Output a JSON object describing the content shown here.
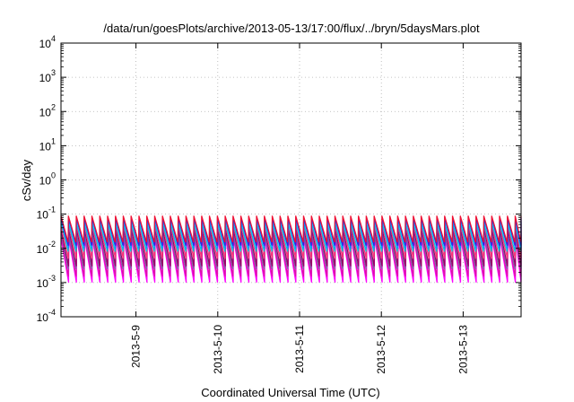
{
  "chart_data": {
    "type": "line",
    "title": "/data/run/goesPlots/archive/2013-05-13/17:00/flux/../bryn/5daysMars.plot",
    "xlabel": "Coordinated Universal Time (UTC)",
    "ylabel": "cSv/day",
    "y_scale": "log",
    "ylim": [
      0.0001,
      10000
    ],
    "xlim": [
      "2013-05-08T02:00",
      "2013-05-13T17:00"
    ],
    "y_ticks": [
      {
        "base": "10",
        "exp": "-4",
        "value": 0.0001
      },
      {
        "base": "10",
        "exp": "-3",
        "value": 0.001
      },
      {
        "base": "10",
        "exp": "-2",
        "value": 0.01
      },
      {
        "base": "10",
        "exp": "-1",
        "value": 0.1
      },
      {
        "base": "10",
        "exp": "0",
        "value": 1
      },
      {
        "base": "10",
        "exp": "1",
        "value": 10
      },
      {
        "base": "10",
        "exp": "2",
        "value": 100
      },
      {
        "base": "10",
        "exp": "3",
        "value": 1000
      },
      {
        "base": "10",
        "exp": "4",
        "value": 10000
      }
    ],
    "x_ticks": [
      {
        "label": "2013-5-9",
        "value": "2013-05-09T00:00"
      },
      {
        "label": "2013-5-10",
        "value": "2013-05-10T00:00"
      },
      {
        "label": "2013-5-11",
        "value": "2013-05-11T00:00"
      },
      {
        "label": "2013-5-12",
        "value": "2013-05-12T00:00"
      },
      {
        "label": "2013-5-13",
        "value": "2013-05-13T00:00"
      }
    ],
    "grid": true,
    "pattern": "sawtooth, period about 2.3 hours",
    "series": [
      {
        "color": "#ff00ff",
        "peak": 0.02,
        "trough": 0.001
      },
      {
        "color": "#dd11aa",
        "peak": 0.025,
        "trough": 0.0015
      },
      {
        "color": "#7766aa",
        "peak": 0.03,
        "trough": 0.0025
      },
      {
        "color": "#990066",
        "peak": 0.035,
        "trough": 0.003
      },
      {
        "color": "#ff3377",
        "peak": 0.05,
        "trough": 0.005
      },
      {
        "color": "#00ccdd",
        "peak": 0.06,
        "trough": 0.008
      },
      {
        "color": "#1188ff",
        "peak": 0.07,
        "trough": 0.01
      },
      {
        "color": "#3322dd",
        "peak": 0.08,
        "trough": 0.012
      },
      {
        "color": "#ee1133",
        "peak": 0.09,
        "trough": 0.015
      }
    ]
  }
}
